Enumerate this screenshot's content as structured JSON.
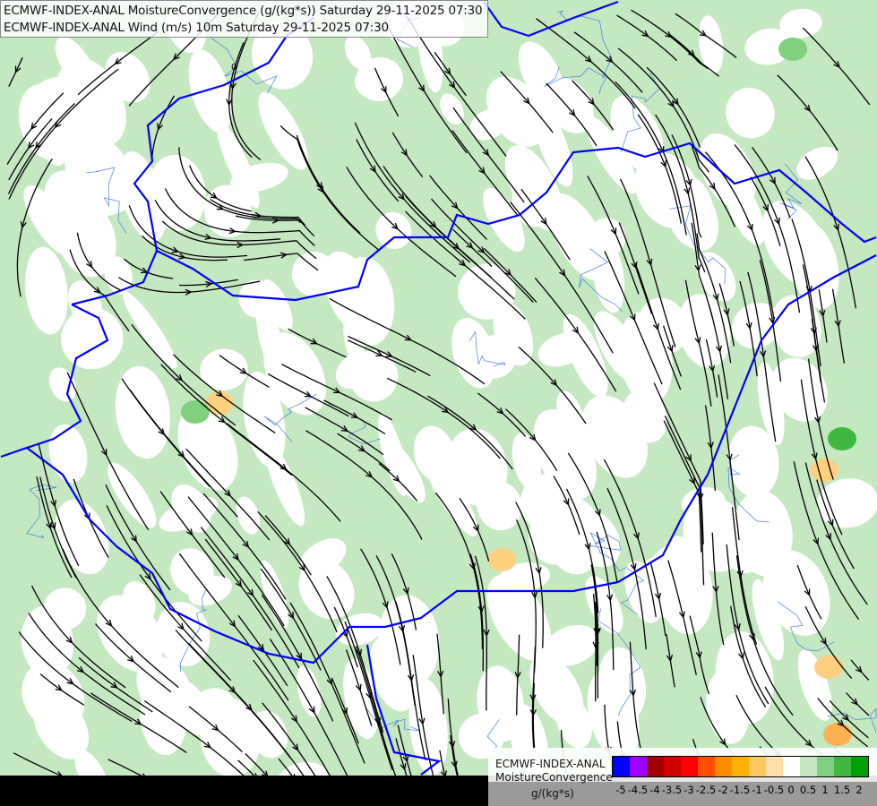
{
  "header": {
    "line1": "ECMWF-INDEX-ANAL MoistureConvergence (g/(kg*s)) Saturday 29-11-2025 07:30",
    "line2": "ECMWF-INDEX-ANAL Wind (m/s) 10m Saturday 29-11-2025 07:30"
  },
  "map": {
    "layers": [
      "moisture-convergence-shading",
      "wind-streamlines",
      "country-borders",
      "rivers"
    ],
    "colors": {
      "border": "#0000ff",
      "river": "#4a7fe0",
      "streamline": "#000000",
      "shade_light": "#c4e8c0",
      "shade_mid": "#7fcf7f"
    },
    "contour_label": "0"
  },
  "legend": {
    "model": "ECMWF-INDEX-ANAL",
    "parameter": "MoistureConvergence",
    "unit": "g/(kg*s)",
    "colors": [
      "#0000ff",
      "#a000ff",
      "#a00000",
      "#d00000",
      "#ff0000",
      "#ff5000",
      "#ff8c00",
      "#ffb000",
      "#ffc860",
      "#ffe0a8",
      "#ffffff",
      "#c4e8c0",
      "#80d080",
      "#40b840",
      "#00a000"
    ],
    "labels": [
      "-5",
      "-4.5",
      "-4",
      "-3.5",
      "-3",
      "-2.5",
      "-2",
      "-1.5",
      "-1",
      "-0.5",
      "0",
      "0.5",
      "1",
      "1.5",
      "2"
    ]
  }
}
